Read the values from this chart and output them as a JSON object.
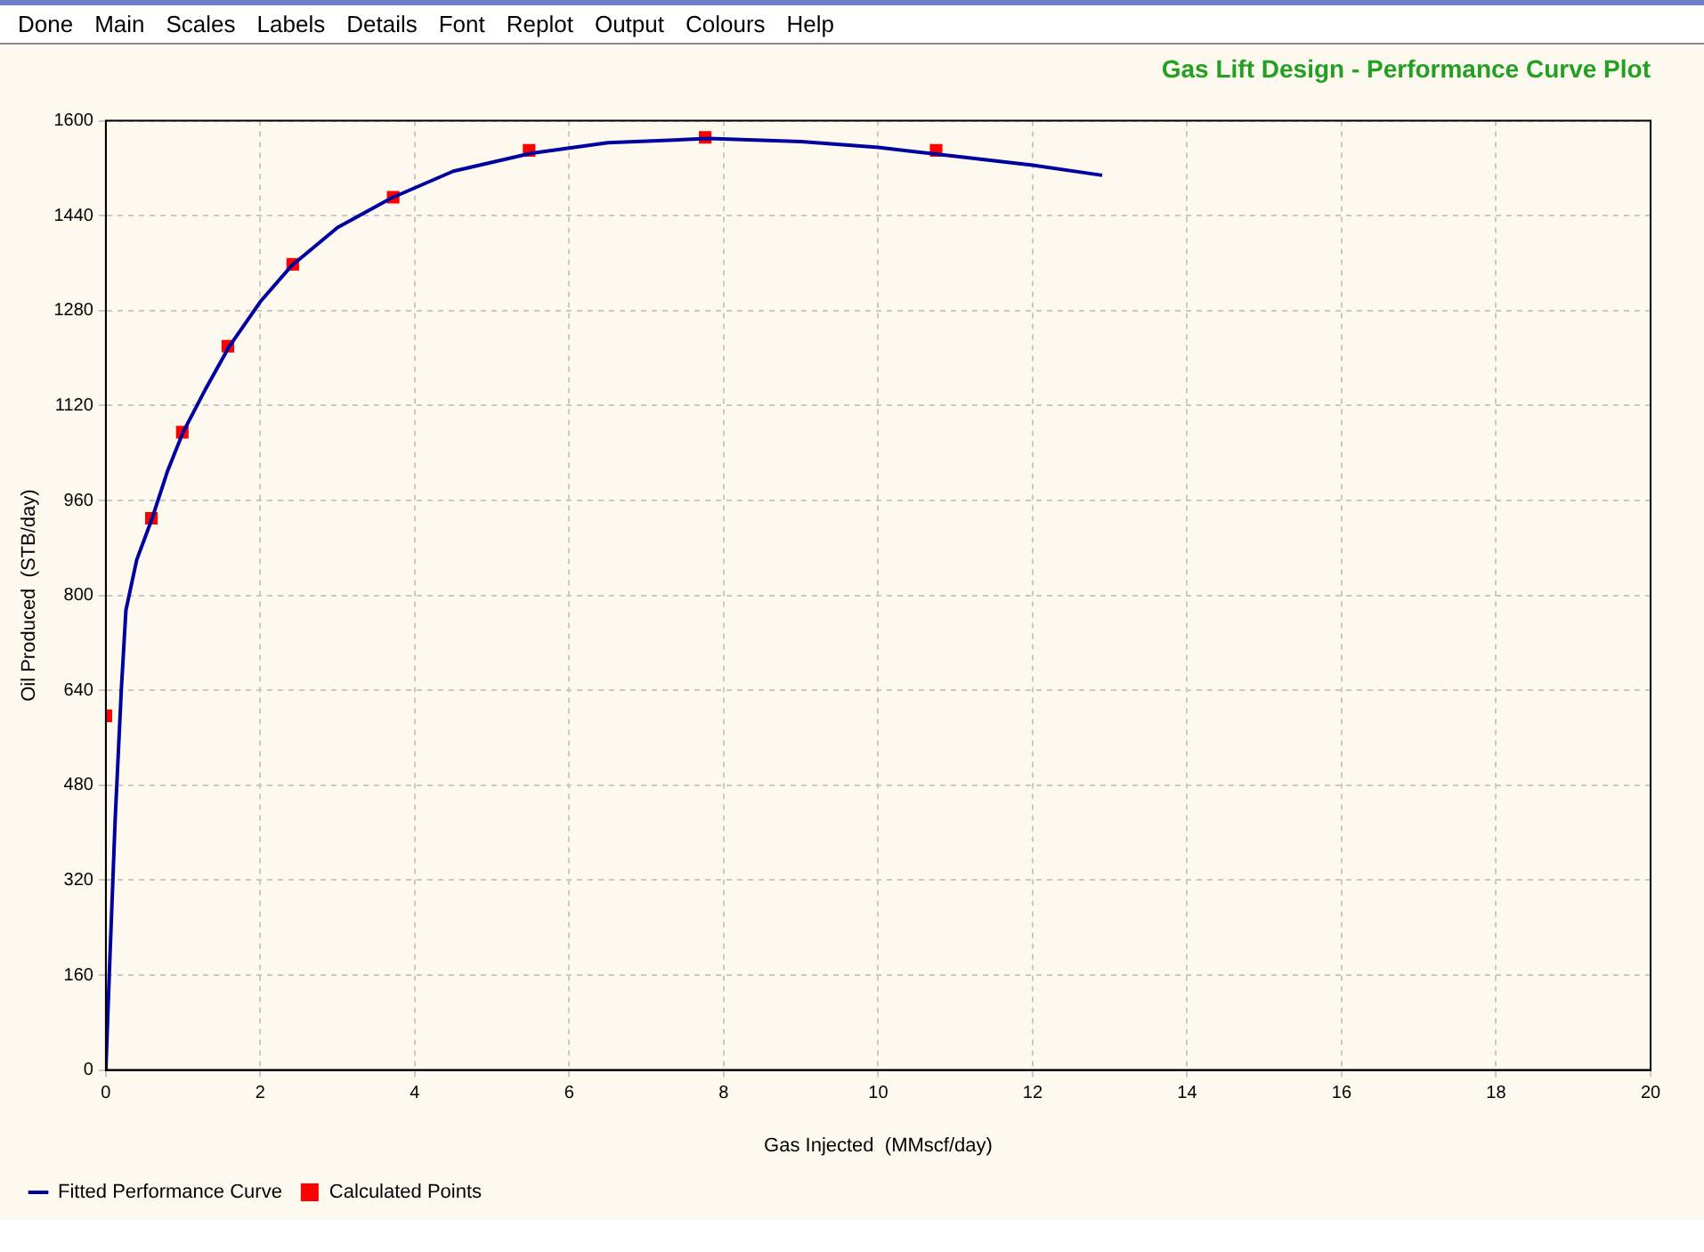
{
  "chart_data": {
    "type": "line",
    "title": "Gas Lift Design - Performance Curve Plot",
    "xlabel": "Gas Injected  (MMscf/day)",
    "ylabel": "Oil Produced  (STB/day)",
    "annotations": [
      "Done",
      "Main",
      "Scales",
      "Labels",
      "Details",
      "Font",
      "Replot",
      "Output",
      "Colours",
      "Help"
    ],
    "series": [
      {
        "name": "Fitted Performance Curve",
        "type": "line",
        "color": "#0000a0",
        "marker": "none",
        "x": [
          0,
          0.05,
          0.12,
          0.2,
          0.26,
          0.4,
          0.6,
          0.8,
          1.0,
          1.3,
          1.6,
          2.0,
          2.4,
          3.0,
          3.7,
          4.5,
          5.5,
          6.5,
          7.8,
          9.0,
          10.0,
          11.0,
          12.0,
          12.9
        ],
        "values": [
          0,
          180,
          420,
          640,
          775,
          860,
          930,
          1010,
          1075,
          1150,
          1220,
          1295,
          1355,
          1420,
          1470,
          1515,
          1545,
          1563,
          1570,
          1565,
          1555,
          1540,
          1525,
          1508
        ]
      },
      {
        "name": "Calculated Points",
        "type": "scatter",
        "color": "#ff0000",
        "marker": "square",
        "x": [
          0,
          0.59,
          0.99,
          1.58,
          2.42,
          3.72,
          5.48,
          7.76,
          10.75
        ],
        "values": [
          597,
          930,
          1075,
          1220,
          1358,
          1471,
          1550,
          1572,
          1550
        ]
      }
    ],
    "xlim": [
      0,
      20
    ],
    "xticks": [
      0,
      2,
      4,
      6,
      8,
      10,
      12,
      14,
      16,
      18,
      20
    ],
    "ylim": [
      0,
      1600
    ],
    "yticks": [
      0,
      160,
      320,
      480,
      640,
      800,
      960,
      1120,
      1280,
      1440,
      1600
    ],
    "grid": true,
    "legend": "bottom left"
  }
}
